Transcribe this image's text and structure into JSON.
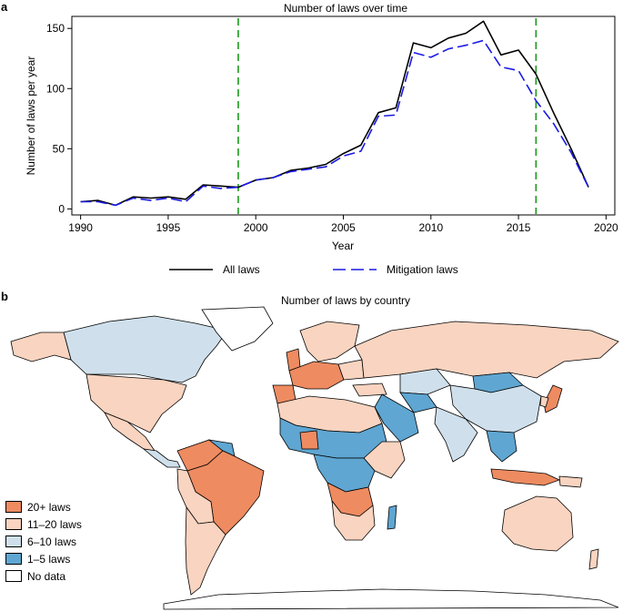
{
  "panel_a_letter": "a",
  "panel_b_letter": "b",
  "chart_data": {
    "type": "line",
    "title": "Number of laws over time",
    "xlabel": "Year",
    "ylabel": "Number of laws per year",
    "xlim": [
      1989.5,
      2020.5
    ],
    "ylim": [
      -5,
      160
    ],
    "xticks": [
      1990,
      1995,
      2000,
      2005,
      2010,
      2015,
      2020
    ],
    "yticks": [
      0,
      50,
      100,
      150
    ],
    "x": [
      1990,
      1991,
      1992,
      1993,
      1994,
      1995,
      1996,
      1997,
      1998,
      1999,
      2000,
      2001,
      2002,
      2003,
      2004,
      2005,
      2006,
      2007,
      2008,
      2009,
      2010,
      2011,
      2012,
      2013,
      2014,
      2015,
      2016,
      2017,
      2018,
      2019
    ],
    "series": [
      {
        "name": "All laws",
        "color": "#000000",
        "style": "solid",
        "values": [
          6,
          7,
          3,
          10,
          9,
          10,
          8,
          20,
          19,
          18,
          24,
          26,
          32,
          34,
          37,
          46,
          53,
          80,
          84,
          138,
          134,
          142,
          146,
          156,
          128,
          132,
          112,
          80,
          50,
          18
        ]
      },
      {
        "name": "Mitigation laws",
        "color": "#1a1ae6",
        "style": "dashed",
        "values": [
          6,
          6,
          3,
          9,
          7,
          9,
          6,
          19,
          17,
          18,
          24,
          26,
          31,
          33,
          35,
          44,
          48,
          77,
          78,
          130,
          126,
          133,
          136,
          140,
          118,
          115,
          90,
          71,
          47,
          18
        ]
      }
    ],
    "reference_lines": [
      1999,
      2016
    ],
    "reference_line_color": "#1a9a1a",
    "legend_position": "bottom"
  },
  "map": {
    "title": "Number of laws by country",
    "legend": [
      {
        "label": "20+ laws",
        "color": "#ee8b61"
      },
      {
        "label": "11–20 laws",
        "color": "#f9d4c0"
      },
      {
        "label": "6–10 laws",
        "color": "#cfe0ec"
      },
      {
        "label": "1–5 laws",
        "color": "#5fa6d2"
      },
      {
        "label": "No data",
        "color": "#ffffff"
      }
    ]
  }
}
